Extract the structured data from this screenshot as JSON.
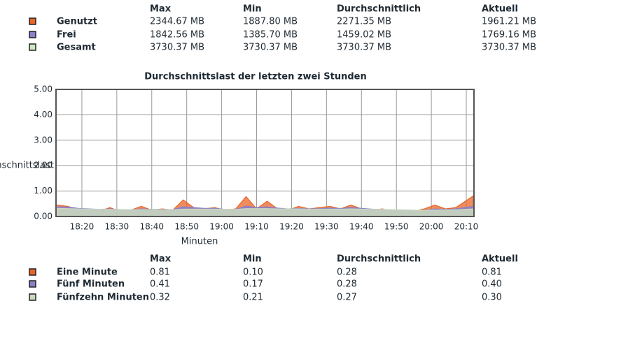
{
  "memory_table": {
    "columns": [
      "Max",
      "Min",
      "Durchschnittlich",
      "Aktuell"
    ],
    "rows": [
      {
        "color": "#e8662a",
        "label": "Genutzt",
        "cells": [
          "2344.67 MB",
          "1887.80 MB",
          "2271.35 MB",
          "1961.21 MB"
        ]
      },
      {
        "color": "#8a7fc8",
        "label": "Frei",
        "cells": [
          "1842.56 MB",
          "1385.70 MB",
          "1459.02 MB",
          "1769.16 MB"
        ]
      },
      {
        "color": "#cfe8c4",
        "label": "Gesamt",
        "cells": [
          "3730.37 MB",
          "3730.37 MB",
          "3730.37 MB",
          "3730.37 MB"
        ]
      }
    ]
  },
  "chart_data": {
    "type": "area",
    "title": "Durchschnittslast der letzten zwei Stunden",
    "y_label": "Durchschnittslast",
    "x_label": "Minuten",
    "x": [
      1093,
      1096,
      1099,
      1102,
      1105,
      1108,
      1111,
      1114,
      1117,
      1120,
      1123,
      1126,
      1129,
      1132,
      1135,
      1138,
      1141,
      1144,
      1147,
      1150,
      1153,
      1156,
      1159,
      1162,
      1165,
      1168,
      1171,
      1174,
      1177,
      1180,
      1183,
      1186,
      1189,
      1192,
      1195,
      1198,
      1201,
      1204,
      1207,
      1212
    ],
    "series": [
      {
        "name": "Eine Minute",
        "color": "#e8662a",
        "values": [
          0.45,
          0.4,
          0.25,
          0.3,
          0.2,
          0.35,
          0.2,
          0.25,
          0.4,
          0.25,
          0.3,
          0.25,
          0.65,
          0.35,
          0.3,
          0.35,
          0.25,
          0.3,
          0.78,
          0.3,
          0.6,
          0.3,
          0.25,
          0.4,
          0.3,
          0.35,
          0.4,
          0.3,
          0.45,
          0.3,
          0.25,
          0.3,
          0.2,
          0.25,
          0.2,
          0.3,
          0.45,
          0.3,
          0.35,
          0.81
        ]
      },
      {
        "name": "Fünf Minuten",
        "color": "#8a7fc8",
        "values": [
          0.38,
          0.37,
          0.32,
          0.3,
          0.28,
          0.3,
          0.27,
          0.26,
          0.3,
          0.28,
          0.28,
          0.27,
          0.38,
          0.35,
          0.32,
          0.32,
          0.28,
          0.28,
          0.41,
          0.35,
          0.38,
          0.33,
          0.3,
          0.32,
          0.3,
          0.31,
          0.33,
          0.31,
          0.35,
          0.32,
          0.29,
          0.28,
          0.25,
          0.24,
          0.22,
          0.24,
          0.3,
          0.28,
          0.3,
          0.4
        ]
      },
      {
        "name": "Fünfzehn Minuten",
        "color": "#c9d9bf",
        "values": [
          0.32,
          0.31,
          0.3,
          0.29,
          0.28,
          0.28,
          0.27,
          0.27,
          0.27,
          0.27,
          0.27,
          0.26,
          0.29,
          0.29,
          0.29,
          0.29,
          0.28,
          0.28,
          0.31,
          0.31,
          0.31,
          0.3,
          0.3,
          0.3,
          0.29,
          0.29,
          0.29,
          0.29,
          0.3,
          0.29,
          0.28,
          0.28,
          0.27,
          0.26,
          0.25,
          0.24,
          0.25,
          0.26,
          0.26,
          0.3
        ]
      }
    ],
    "xlim": [
      1092.6,
      1212.2
    ],
    "ylim": [
      0,
      5
    ],
    "xticks": [
      {
        "value": 1100,
        "label": "18:20"
      },
      {
        "value": 1110,
        "label": "18:30"
      },
      {
        "value": 1120,
        "label": "18:40"
      },
      {
        "value": 1130,
        "label": "18:50"
      },
      {
        "value": 1140,
        "label": "19:00"
      },
      {
        "value": 1150,
        "label": "19:10"
      },
      {
        "value": 1160,
        "label": "19:20"
      },
      {
        "value": 1170,
        "label": "19:30"
      },
      {
        "value": 1180,
        "label": "19:40"
      },
      {
        "value": 1190,
        "label": "19:50"
      },
      {
        "value": 1200,
        "label": "20:00"
      },
      {
        "value": 1210,
        "label": "20:10"
      }
    ],
    "yticks": [
      {
        "value": 0,
        "label": "0.00"
      },
      {
        "value": 1,
        "label": "1.00"
      },
      {
        "value": 2,
        "label": "2.00"
      },
      {
        "value": 3,
        "label": "3.00"
      },
      {
        "value": 4,
        "label": "4.00"
      },
      {
        "value": 5,
        "label": "5.00"
      }
    ],
    "grid": true
  },
  "load_table": {
    "columns": [
      "Max",
      "Min",
      "Durchschnittlich",
      "Aktuell"
    ],
    "rows": [
      [
        "0.81",
        "0.10",
        "0.28",
        "0.81"
      ],
      [
        "0.41",
        "0.17",
        "0.28",
        "0.40"
      ],
      [
        "0.32",
        "0.21",
        "0.27",
        "0.30"
      ]
    ]
  }
}
